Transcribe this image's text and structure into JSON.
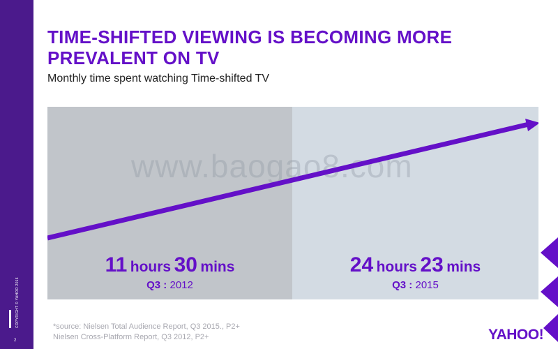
{
  "slide": {
    "title": "TIME-SHIFTED VIEWING IS BECOMING MORE PREVALENT ON TV",
    "subtitle": "Monthly time spent watching Time-shifted TV",
    "watermark": "www.baogao8.com",
    "copyright": "COPYRIGHT © YAHOO 2016",
    "page_number": "2",
    "source_line1": "*source: Nielsen Total Audience Report, Q3 2015., P2+",
    "source_line2": "Nielsen Cross-Platform Report, Q3 2012, P2+",
    "logo": "YAHOO!",
    "colors": {
      "accent": "#6410c8",
      "left_panel": "#c1c5ca",
      "right_panel": "#d3dbe3",
      "band": "#4b1a8c"
    }
  },
  "chart_data": {
    "type": "line",
    "categories": [
      "Q3 : 2012",
      "Q3 : 2015"
    ],
    "values_minutes": [
      690,
      1463
    ],
    "points": [
      {
        "hours_value": "11",
        "hours_unit": "hours",
        "mins_value": "30",
        "mins_unit": "mins",
        "period_label": "Q3 :",
        "period_year": "2012"
      },
      {
        "hours_value": "24",
        "hours_unit": "hours",
        "mins_value": "23",
        "mins_unit": "mins",
        "period_label": "Q3 :",
        "period_year": "2015"
      }
    ]
  }
}
